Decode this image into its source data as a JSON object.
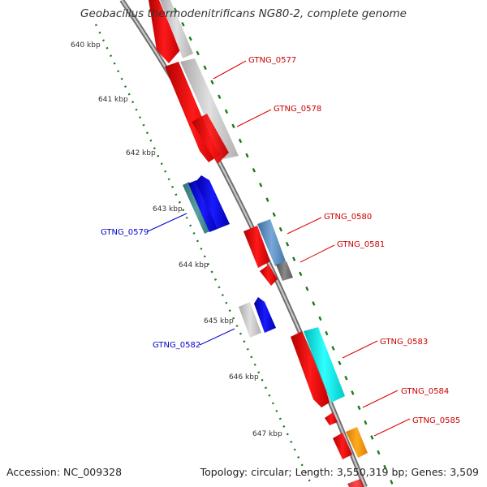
{
  "title": "Geobacillus thermodenitrificans NG80-2, complete genome",
  "footer": {
    "accession": "Accession: NC_009328",
    "topology": "Topology: circular; Length: 3,550,319 bp; Genes: 3,509"
  },
  "scale_labels": [
    "640 kbp",
    "641 kbp",
    "642 kbp",
    "643 kbp",
    "644 kbp",
    "645 kbp",
    "646 kbp",
    "647 kbp"
  ],
  "gene_labels": [
    {
      "text": "GTNG_0577",
      "color": "#cc0000"
    },
    {
      "text": "GTNG_0578",
      "color": "#cc0000"
    },
    {
      "text": "GTNG_0579",
      "color": "#0000cc"
    },
    {
      "text": "GTNG_0580",
      "color": "#cc0000"
    },
    {
      "text": "GTNG_0581",
      "color": "#cc0000"
    },
    {
      "text": "GTNG_0582",
      "color": "#0000cc"
    },
    {
      "text": "GTNG_0583",
      "color": "#cc0000"
    },
    {
      "text": "GTNG_0584",
      "color": "#cc0000"
    },
    {
      "text": "GTNG_0585",
      "color": "#cc0000"
    }
  ],
  "colors": {
    "forward": "#ff0000",
    "reverse": "#0000ee",
    "backbone": "#8a8a8a",
    "tick": "#1a7a1a",
    "cyan": "#00e5e5",
    "orange": "#ff9900",
    "steel": "#5a8fc0",
    "gray": "#c8c8c8"
  }
}
